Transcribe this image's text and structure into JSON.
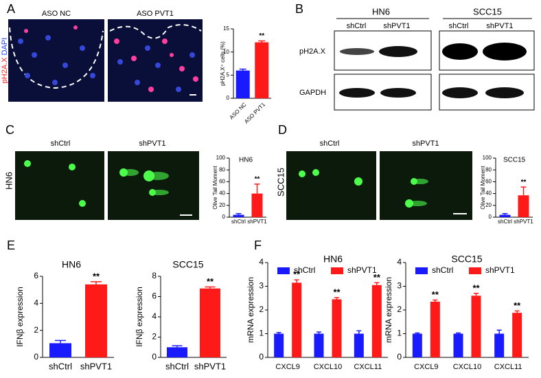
{
  "figure": {
    "panels": [
      "A",
      "B",
      "C",
      "D",
      "E",
      "F"
    ],
    "a_images": [
      "ASO NC",
      "ASO PVT1"
    ],
    "a_stain": [
      "pH2A.X",
      "DAPI"
    ],
    "b_lines": [
      "HN6",
      "SCC15"
    ],
    "b_groups": [
      "shCtrl",
      "shPVT1",
      "shCtrl",
      "shPVT1"
    ],
    "b_rows": [
      "pH2A.X",
      "GAPDH"
    ],
    "c_images": [
      "shCtrl",
      "shPVT1"
    ],
    "c_side": "HN6",
    "d_images": [
      "shCtrl",
      "shPVT1"
    ],
    "d_side": "SCC15"
  },
  "chart_data": [
    {
      "type": "bar",
      "ylabel": "pH2A.X⁺ cells (%)",
      "categories": [
        "ASO NC",
        "ASO PVT1"
      ],
      "values": [
        6,
        12.1
      ],
      "errors": [
        0.3,
        0.3
      ],
      "colors": [
        "#1a1aff",
        "#ff1a1a"
      ],
      "annotations": [
        null,
        "**"
      ],
      "ylim": [
        0,
        15
      ],
      "yticks": [
        0,
        5,
        10,
        15
      ]
    },
    {
      "type": "bar",
      "title": "HN6",
      "ylabel": "Olive Tail Moment",
      "categories": [
        "shCtrl",
        "shPVT1"
      ],
      "values": [
        4,
        40
      ],
      "errors": [
        2,
        16
      ],
      "colors": [
        "#1a1aff",
        "#ff1a1a"
      ],
      "annotations": [
        null,
        "**"
      ],
      "ylim": [
        0,
        100
      ],
      "yticks": [
        0,
        20,
        40,
        60,
        80,
        100
      ]
    },
    {
      "type": "bar",
      "title": "SCC15",
      "ylabel": "Olive Tail Moment",
      "categories": [
        "shCtrl",
        "shPVT1"
      ],
      "values": [
        4,
        37
      ],
      "errors": [
        2,
        14
      ],
      "colors": [
        "#1a1aff",
        "#ff1a1a"
      ],
      "annotations": [
        null,
        "**"
      ],
      "ylim": [
        0,
        100
      ],
      "yticks": [
        0,
        20,
        40,
        60,
        80,
        100
      ]
    },
    {
      "type": "bar",
      "title": "HN6",
      "ylabel": "IFNβ expression",
      "categories": [
        "shCtrl",
        "shPVT1"
      ],
      "values": [
        1.05,
        5.4
      ],
      "errors": [
        0.2,
        0.2
      ],
      "colors": [
        "#1a1aff",
        "#ff1a1a"
      ],
      "annotations": [
        null,
        "**"
      ],
      "ylim": [
        0,
        6
      ],
      "yticks": [
        0,
        2,
        4,
        6
      ]
    },
    {
      "type": "bar",
      "title": "SCC15",
      "ylabel": "IFNβ expression",
      "categories": [
        "shCtrl",
        "shPVT1"
      ],
      "values": [
        1.0,
        6.8
      ],
      "errors": [
        0.15,
        0.15
      ],
      "colors": [
        "#1a1aff",
        "#ff1a1a"
      ],
      "annotations": [
        null,
        "**"
      ],
      "ylim": [
        0,
        8
      ],
      "yticks": [
        0,
        2,
        4,
        6,
        8
      ]
    },
    {
      "type": "grouped_bar",
      "title": "HN6",
      "ylabel": "mRNA expression",
      "categories": [
        "CXCL9",
        "CXCL10",
        "CXCL11"
      ],
      "series": [
        {
          "name": "shCtrl",
          "color": "#1a1aff",
          "values": [
            1.0,
            1.0,
            1.0
          ],
          "errors": [
            0.05,
            0.07,
            0.12
          ]
        },
        {
          "name": "shPVT1",
          "color": "#ff1a1a",
          "values": [
            3.15,
            2.45,
            3.05
          ],
          "errors": [
            0.12,
            0.07,
            0.1
          ],
          "annotations": [
            "**",
            "**",
            "**"
          ]
        }
      ],
      "ylim": [
        0,
        4
      ],
      "yticks": [
        0,
        1,
        2,
        3,
        4
      ]
    },
    {
      "type": "grouped_bar",
      "title": "SCC15",
      "ylabel": "mRNA expression",
      "categories": [
        "CXCL9",
        "CXCL10",
        "CXCL11"
      ],
      "series": [
        {
          "name": "shCtrl",
          "color": "#1a1aff",
          "values": [
            1.0,
            1.0,
            1.0
          ],
          "errors": [
            0.03,
            0.03,
            0.15
          ]
        },
        {
          "name": "shPVT1",
          "color": "#ff1a1a",
          "values": [
            2.35,
            2.6,
            1.88
          ],
          "errors": [
            0.07,
            0.1,
            0.08
          ],
          "annotations": [
            "**",
            "**",
            "**"
          ]
        }
      ],
      "ylim": [
        0,
        4
      ],
      "yticks": [
        0,
        1,
        2,
        3,
        4
      ]
    }
  ]
}
